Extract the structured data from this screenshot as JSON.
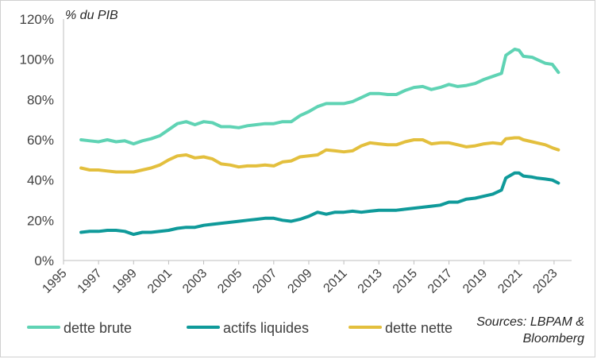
{
  "chart_data": {
    "type": "line",
    "title": "",
    "ylabel": "% du PIB",
    "xlabel": "",
    "source_line1": "Sources: LBPAM &",
    "source_line2": "Bloomberg",
    "xlim": [
      1995,
      2024
    ],
    "ylim": [
      0,
      120
    ],
    "x_ticks": [
      "1995",
      "1997",
      "1999",
      "2001",
      "2003",
      "2005",
      "2007",
      "2009",
      "2011",
      "2013",
      "2015",
      "2017",
      "2019",
      "2021",
      "2023"
    ],
    "y_ticks": [
      "0%",
      "20%",
      "40%",
      "60%",
      "80%",
      "100%",
      "120%"
    ],
    "grid": false,
    "legend_position": "bottom",
    "series": [
      {
        "name": "dette brute",
        "color": "#5fd3b4",
        "points": [
          [
            1996.0,
            60
          ],
          [
            1996.5,
            59.5
          ],
          [
            1997.0,
            59
          ],
          [
            1997.5,
            60
          ],
          [
            1998.0,
            59
          ],
          [
            1998.5,
            59.5
          ],
          [
            1999.0,
            58
          ],
          [
            1999.5,
            59.5
          ],
          [
            2000.0,
            60.5
          ],
          [
            2000.5,
            62
          ],
          [
            2001.0,
            65
          ],
          [
            2001.5,
            68
          ],
          [
            2002.0,
            69
          ],
          [
            2002.5,
            67.5
          ],
          [
            2003.0,
            69
          ],
          [
            2003.5,
            68.5
          ],
          [
            2004.0,
            66.5
          ],
          [
            2004.5,
            66.5
          ],
          [
            2005.0,
            66
          ],
          [
            2005.5,
            67
          ],
          [
            2006.0,
            67.5
          ],
          [
            2006.5,
            68
          ],
          [
            2007.0,
            68
          ],
          [
            2007.5,
            69
          ],
          [
            2008.0,
            69
          ],
          [
            2008.5,
            72
          ],
          [
            2009.0,
            74
          ],
          [
            2009.5,
            76.5
          ],
          [
            2010.0,
            78
          ],
          [
            2010.5,
            78
          ],
          [
            2011.0,
            78
          ],
          [
            2011.5,
            79
          ],
          [
            2012.0,
            81
          ],
          [
            2012.5,
            83
          ],
          [
            2013.0,
            83
          ],
          [
            2013.5,
            82.5
          ],
          [
            2014.0,
            82.5
          ],
          [
            2014.5,
            84.5
          ],
          [
            2015.0,
            86
          ],
          [
            2015.5,
            86.5
          ],
          [
            2016.0,
            85
          ],
          [
            2016.5,
            86
          ],
          [
            2017.0,
            87.5
          ],
          [
            2017.5,
            86.5
          ],
          [
            2018.0,
            87
          ],
          [
            2018.5,
            88
          ],
          [
            2019.0,
            90
          ],
          [
            2019.5,
            91.5
          ],
          [
            2020.0,
            93
          ],
          [
            2020.25,
            102
          ],
          [
            2020.75,
            105
          ],
          [
            2021.0,
            104.5
          ],
          [
            2021.25,
            101.5
          ],
          [
            2021.75,
            101
          ],
          [
            2022.0,
            100
          ],
          [
            2022.5,
            98
          ],
          [
            2022.9,
            97.5
          ],
          [
            2023.25,
            93.5
          ]
        ]
      },
      {
        "name": "actifs liquides",
        "color": "#0f9a9a",
        "points": [
          [
            1996.0,
            14
          ],
          [
            1996.5,
            14.5
          ],
          [
            1997.0,
            14.5
          ],
          [
            1997.5,
            15
          ],
          [
            1998.0,
            15
          ],
          [
            1998.5,
            14.5
          ],
          [
            1999.0,
            13
          ],
          [
            1999.5,
            14
          ],
          [
            2000.0,
            14
          ],
          [
            2000.5,
            14.5
          ],
          [
            2001.0,
            15
          ],
          [
            2001.5,
            16
          ],
          [
            2002.0,
            16.5
          ],
          [
            2002.5,
            16.5
          ],
          [
            2003.0,
            17.5
          ],
          [
            2003.5,
            18
          ],
          [
            2004.0,
            18.5
          ],
          [
            2004.5,
            19
          ],
          [
            2005.0,
            19.5
          ],
          [
            2005.5,
            20
          ],
          [
            2006.0,
            20.5
          ],
          [
            2006.5,
            21
          ],
          [
            2007.0,
            21
          ],
          [
            2007.5,
            20
          ],
          [
            2008.0,
            19.5
          ],
          [
            2008.5,
            20.5
          ],
          [
            2009.0,
            22
          ],
          [
            2009.5,
            24
          ],
          [
            2010.0,
            23
          ],
          [
            2010.5,
            24
          ],
          [
            2011.0,
            24
          ],
          [
            2011.5,
            24.5
          ],
          [
            2012.0,
            24
          ],
          [
            2012.5,
            24.5
          ],
          [
            2013.0,
            25
          ],
          [
            2013.5,
            25
          ],
          [
            2014.0,
            25
          ],
          [
            2014.5,
            25.5
          ],
          [
            2015.0,
            26
          ],
          [
            2015.5,
            26.5
          ],
          [
            2016.0,
            27
          ],
          [
            2016.5,
            27.5
          ],
          [
            2017.0,
            29
          ],
          [
            2017.5,
            29
          ],
          [
            2018.0,
            30.5
          ],
          [
            2018.5,
            31
          ],
          [
            2019.0,
            32
          ],
          [
            2019.5,
            33
          ],
          [
            2020.0,
            35
          ],
          [
            2020.25,
            41
          ],
          [
            2020.75,
            43.5
          ],
          [
            2021.0,
            43.5
          ],
          [
            2021.25,
            42
          ],
          [
            2021.75,
            41.5
          ],
          [
            2022.0,
            41
          ],
          [
            2022.5,
            40.5
          ],
          [
            2022.9,
            40
          ],
          [
            2023.25,
            38.5
          ]
        ]
      },
      {
        "name": "dette nette",
        "color": "#e3bf3d",
        "points": [
          [
            1996.0,
            46
          ],
          [
            1996.5,
            45
          ],
          [
            1997.0,
            45
          ],
          [
            1997.5,
            44.5
          ],
          [
            1998.0,
            44
          ],
          [
            1998.5,
            44
          ],
          [
            1999.0,
            44
          ],
          [
            1999.5,
            45
          ],
          [
            2000.0,
            46
          ],
          [
            2000.5,
            47.5
          ],
          [
            2001.0,
            50
          ],
          [
            2001.5,
            52
          ],
          [
            2002.0,
            52.5
          ],
          [
            2002.5,
            51
          ],
          [
            2003.0,
            51.5
          ],
          [
            2003.5,
            50.5
          ],
          [
            2004.0,
            48
          ],
          [
            2004.5,
            47.5
          ],
          [
            2005.0,
            46.5
          ],
          [
            2005.5,
            47
          ],
          [
            2006.0,
            47
          ],
          [
            2006.5,
            47.5
          ],
          [
            2007.0,
            47
          ],
          [
            2007.5,
            49
          ],
          [
            2008.0,
            49.5
          ],
          [
            2008.5,
            51.5
          ],
          [
            2009.0,
            52
          ],
          [
            2009.5,
            52.5
          ],
          [
            2010.0,
            55
          ],
          [
            2010.5,
            54.5
          ],
          [
            2011.0,
            54
          ],
          [
            2011.5,
            54.5
          ],
          [
            2012.0,
            57
          ],
          [
            2012.5,
            58.5
          ],
          [
            2013.0,
            58
          ],
          [
            2013.5,
            57.5
          ],
          [
            2014.0,
            57.5
          ],
          [
            2014.5,
            59
          ],
          [
            2015.0,
            60
          ],
          [
            2015.5,
            60
          ],
          [
            2016.0,
            58
          ],
          [
            2016.5,
            58.5
          ],
          [
            2017.0,
            58.5
          ],
          [
            2017.5,
            57.5
          ],
          [
            2018.0,
            56.5
          ],
          [
            2018.5,
            57
          ],
          [
            2019.0,
            58
          ],
          [
            2019.5,
            58.5
          ],
          [
            2020.0,
            58
          ],
          [
            2020.25,
            60.5
          ],
          [
            2020.75,
            61
          ],
          [
            2021.0,
            61
          ],
          [
            2021.25,
            60
          ],
          [
            2021.75,
            59
          ],
          [
            2022.0,
            58.5
          ],
          [
            2022.5,
            57.5
          ],
          [
            2022.9,
            56
          ],
          [
            2023.25,
            55
          ]
        ]
      }
    ]
  }
}
